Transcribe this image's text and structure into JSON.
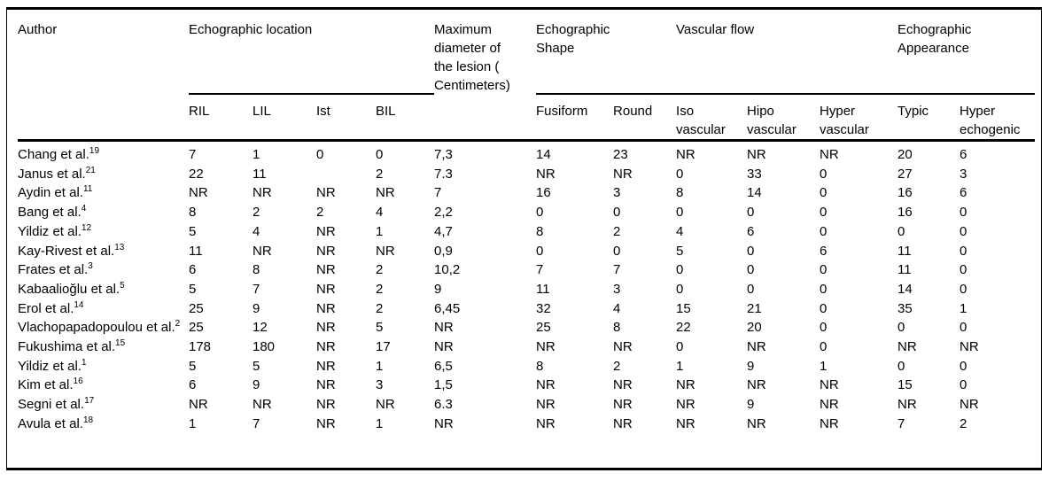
{
  "table": {
    "header": {
      "author": "Author",
      "groups": [
        {
          "id": "echographic-location",
          "label": "Echographic location",
          "span": 4
        },
        {
          "id": "max-diameter",
          "label": "Maximum\ndiameter of\nthe lesion (\nCentimeters)",
          "span": 1
        },
        {
          "id": "echographic-shape",
          "label": "Echographic\nShape",
          "span": 2
        },
        {
          "id": "vascular-flow",
          "label": "Vascular flow",
          "span": 3
        },
        {
          "id": "echographic-appearance",
          "label": "Echographic\nAppearance",
          "span": 2
        }
      ],
      "subcolumns": [
        {
          "id": "ril",
          "label": "RIL"
        },
        {
          "id": "lil",
          "label": "LIL"
        },
        {
          "id": "ist",
          "label": "Ist"
        },
        {
          "id": "bil",
          "label": "BIL"
        },
        {
          "id": "fusiform",
          "label": "Fusiform"
        },
        {
          "id": "round",
          "label": "Round"
        },
        {
          "id": "iso-vascular",
          "label": "Iso\nvascular"
        },
        {
          "id": "hipo-vascular",
          "label": "Hipo\nvascular"
        },
        {
          "id": "hyper-vascular",
          "label": "Hyper\nvascular"
        },
        {
          "id": "typic",
          "label": "Typic"
        },
        {
          "id": "hyper-echogenic",
          "label": "Hyper\nechogenic"
        }
      ]
    },
    "rows": [
      {
        "author": "Chang et al.",
        "ref": "19",
        "values": [
          "7",
          "1",
          "0",
          "0",
          "7,3",
          "14",
          "23",
          "NR",
          "NR",
          "NR",
          "20",
          "6"
        ]
      },
      {
        "author": "Janus et al.",
        "ref": "21",
        "values": [
          "22",
          "11",
          "",
          "2",
          "7.3",
          "NR",
          "NR",
          "0",
          "33",
          "0",
          "27",
          "3"
        ]
      },
      {
        "author": "Aydin et al.",
        "ref": "11",
        "values": [
          "NR",
          "NR",
          "NR",
          "NR",
          "7",
          "16",
          "3",
          "8",
          "14",
          "0",
          "16",
          "6"
        ]
      },
      {
        "author": "Bang et al.",
        "ref": "4",
        "values": [
          "8",
          "2",
          "2",
          "4",
          "2,2",
          "0",
          "0",
          "0",
          "0",
          "0",
          "16",
          "0"
        ]
      },
      {
        "author": "Yildiz et al.",
        "ref": "12",
        "values": [
          "5",
          "4",
          "NR",
          "1",
          "4,7",
          "8",
          "2",
          "4",
          "6",
          "0",
          "0",
          "0"
        ]
      },
      {
        "author": "Kay-Rivest et al.",
        "ref": "13",
        "values": [
          "11",
          "NR",
          "NR",
          "NR",
          "0,9",
          "0",
          "0",
          "5",
          "0",
          "6",
          "11",
          "0"
        ]
      },
      {
        "author": "Frates et al.",
        "ref": "3",
        "values": [
          "6",
          "8",
          "NR",
          "2",
          "10,2",
          "7",
          "7",
          "0",
          "0",
          "0",
          "11",
          "0"
        ]
      },
      {
        "author": "Kabaalioğlu et al.",
        "ref": "5",
        "values": [
          "5",
          "7",
          "NR",
          "2",
          "9",
          "11",
          "3",
          "0",
          "0",
          "0",
          "14",
          "0"
        ]
      },
      {
        "author": "Erol et al.",
        "ref": "14",
        "values": [
          "25",
          "9",
          "NR",
          "2",
          "6,45",
          "32",
          "4",
          "15",
          "21",
          "0",
          "35",
          "1"
        ]
      },
      {
        "author": "Vlachopapadopoulou et al.",
        "ref": "2",
        "values": [
          "25",
          "12",
          "NR",
          "5",
          "NR",
          "25",
          "8",
          "22",
          "20",
          "0",
          "0",
          "0"
        ]
      },
      {
        "author": "Fukushima et al.",
        "ref": "15",
        "values": [
          "178",
          "180",
          "NR",
          "17",
          "NR",
          "NR",
          "NR",
          "0",
          "NR",
          "0",
          "NR",
          "NR"
        ]
      },
      {
        "author": "Yildiz et al.",
        "ref": "1",
        "values": [
          "5",
          "5",
          "NR",
          "1",
          "6,5",
          "8",
          "2",
          "1",
          "9",
          "1",
          "0",
          "0"
        ]
      },
      {
        "author": "Kim et al.",
        "ref": "16",
        "values": [
          "6",
          "9",
          "NR",
          "3",
          "1,5",
          "NR",
          "NR",
          "NR",
          "NR",
          "NR",
          "15",
          "0"
        ]
      },
      {
        "author": "Segni et al.",
        "ref": "17",
        "values": [
          "NR",
          "NR",
          "NR",
          "NR",
          "6.3",
          "NR",
          "NR",
          "NR",
          "9",
          "NR",
          "NR",
          "NR"
        ]
      },
      {
        "author": "Avula et al.",
        "ref": "18",
        "values": [
          "1",
          "7",
          "NR",
          "1",
          "NR",
          "NR",
          "NR",
          "NR",
          "NR",
          "NR",
          "7",
          "2"
        ]
      }
    ]
  }
}
